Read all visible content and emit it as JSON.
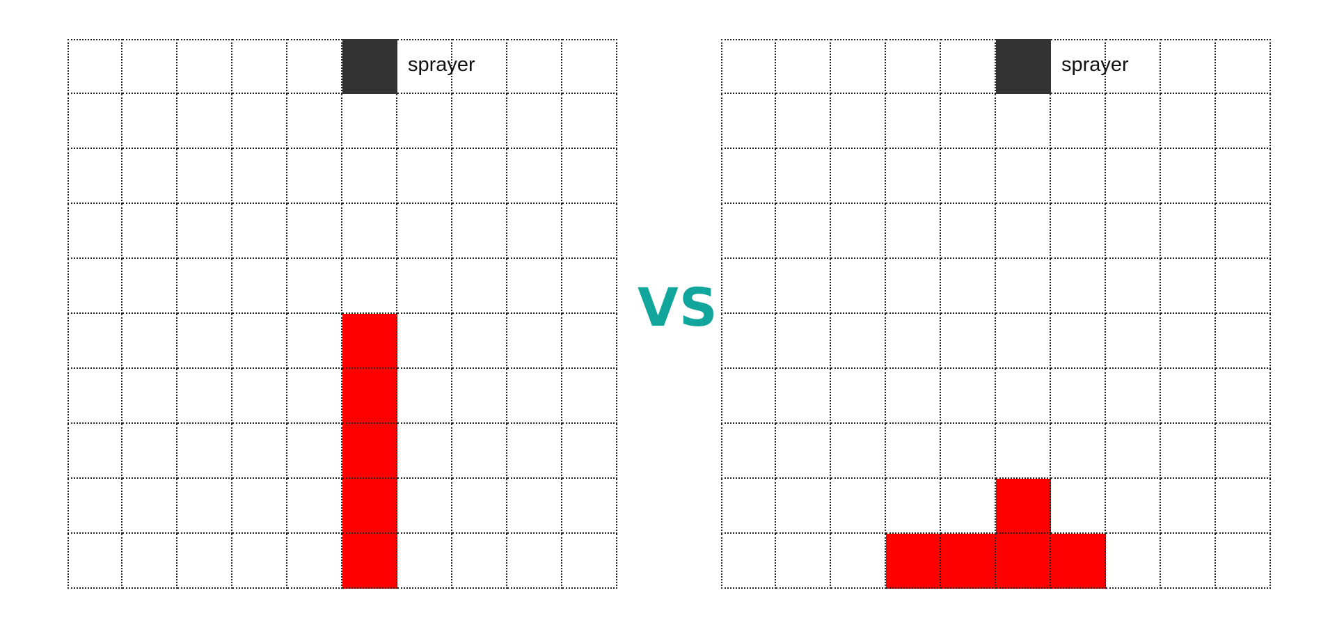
{
  "vs_label": "VS",
  "colors": {
    "filled": "#ff0000",
    "sprayer": "#333333",
    "vs": "#12a59b"
  },
  "grids": [
    {
      "name": "left",
      "rows": 10,
      "cols": 10,
      "sprayer": {
        "row": 0,
        "col": 5,
        "label": "sprayer"
      },
      "filled": [
        [
          5,
          5
        ],
        [
          6,
          5
        ],
        [
          7,
          5
        ],
        [
          8,
          5
        ],
        [
          9,
          5
        ]
      ]
    },
    {
      "name": "right",
      "rows": 10,
      "cols": 10,
      "sprayer": {
        "row": 0,
        "col": 5,
        "label": "sprayer"
      },
      "filled": [
        [
          8,
          5
        ],
        [
          9,
          3
        ],
        [
          9,
          4
        ],
        [
          9,
          5
        ],
        [
          9,
          6
        ]
      ]
    }
  ]
}
